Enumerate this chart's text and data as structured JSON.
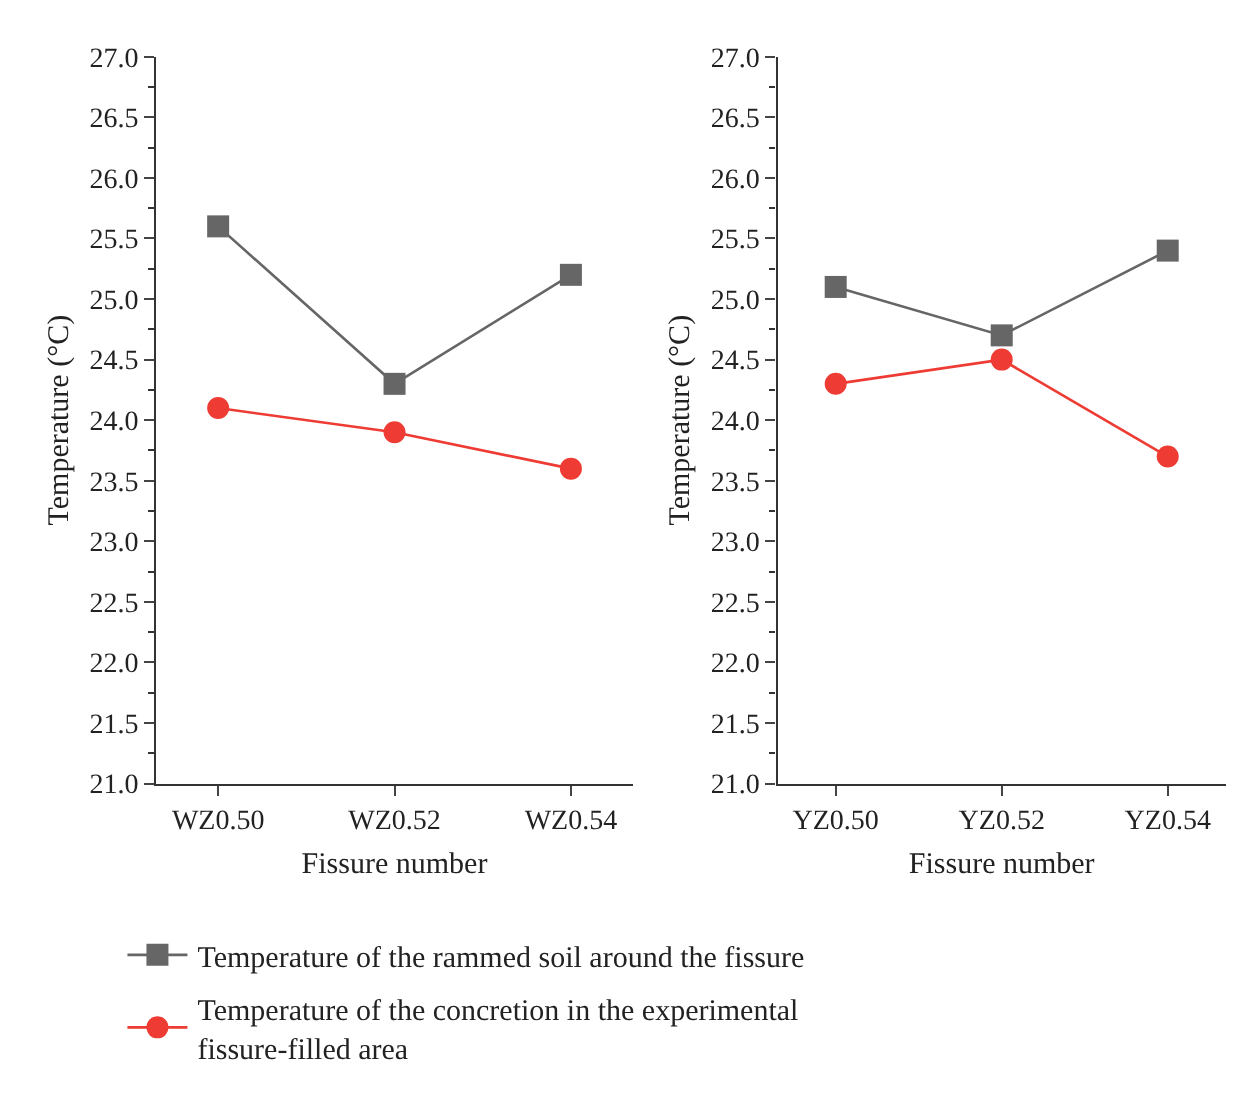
{
  "chart_data": [
    {
      "type": "line",
      "xlabel": "Fissure number",
      "ylabel": "Temperature (°C)",
      "categories": [
        "WZ0.50",
        "WZ0.52",
        "WZ0.54"
      ],
      "ylim": [
        21.0,
        27.0
      ],
      "yticks": [
        {
          "value": 21,
          "label": "21.0"
        },
        {
          "value": 21.5,
          "label": "21.5"
        },
        {
          "value": 22,
          "label": "22.0"
        },
        {
          "value": 22.5,
          "label": "22.5"
        },
        {
          "value": 23,
          "label": "23.0"
        },
        {
          "value": 23.5,
          "label": "23.5"
        },
        {
          "value": 24,
          "label": "24.0"
        },
        {
          "value": 24.5,
          "label": "24.5"
        },
        {
          "value": 25,
          "label": "25.0"
        },
        {
          "value": 25.5,
          "label": "25.5"
        },
        {
          "value": 26,
          "label": "26.0"
        },
        {
          "value": 26.5,
          "label": "26.5"
        },
        {
          "value": 27,
          "label": "27.0"
        }
      ],
      "legend": "bottom",
      "series": [
        {
          "name": "Temperature of the rammed soil around the fissure",
          "color": "#666666",
          "marker": "square",
          "values": [
            25.6,
            24.3,
            25.2
          ]
        },
        {
          "name": "Temperature of the concretion in the experimental fissure-filled area",
          "color": "#ee3b33",
          "marker": "circle",
          "values": [
            24.1,
            23.9,
            23.6
          ]
        }
      ]
    },
    {
      "type": "line",
      "xlabel": "Fissure number",
      "ylabel": "Temperature (°C)",
      "categories": [
        "YZ0.50",
        "YZ0.52",
        "YZ0.54"
      ],
      "ylim": [
        21.0,
        27.0
      ],
      "yticks": [
        {
          "value": 21,
          "label": "21.0"
        },
        {
          "value": 21.5,
          "label": "21.5"
        },
        {
          "value": 22,
          "label": "22.0"
        },
        {
          "value": 22.5,
          "label": "22.5"
        },
        {
          "value": 23,
          "label": "23.0"
        },
        {
          "value": 23.5,
          "label": "23.5"
        },
        {
          "value": 24,
          "label": "24.0"
        },
        {
          "value": 24.5,
          "label": "24.5"
        },
        {
          "value": 25,
          "label": "25.0"
        },
        {
          "value": 25.5,
          "label": "25.5"
        },
        {
          "value": 26,
          "label": "26.0"
        },
        {
          "value": 26.5,
          "label": "26.5"
        },
        {
          "value": 27,
          "label": "27.0"
        }
      ],
      "series": [
        {
          "color": "#666666",
          "marker": "square",
          "values": [
            25.1,
            24.7,
            25.4
          ]
        },
        {
          "color": "#ee3b33",
          "marker": "circle",
          "values": [
            24.3,
            24.5,
            23.7
          ]
        }
      ]
    }
  ]
}
